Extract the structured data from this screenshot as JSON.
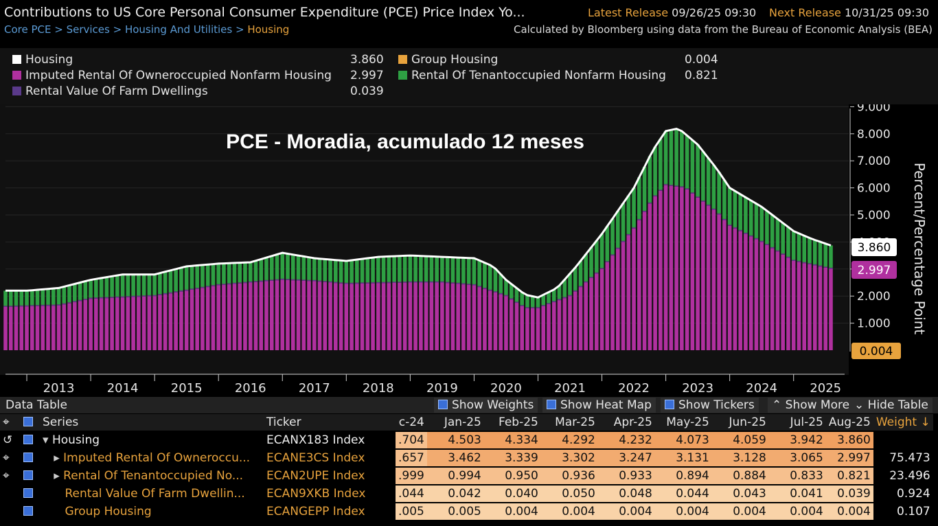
{
  "header": {
    "title": "Contributions to US Core Personal Consumer Expenditure (PCE) Price Index Yo...",
    "latest_label": "Latest Release",
    "latest_value": "09/26/25 09:30",
    "next_label": "Next Release",
    "next_value": "10/31/25 09:30",
    "breadcrumb": [
      "Core PCE",
      "Services",
      "Housing And Utilities",
      "Housing"
    ],
    "source": "Calculated by Bloomberg using data from the Bureau of Economic Analysis (BEA)"
  },
  "legend": {
    "items": [
      {
        "label": "Housing",
        "value": "3.860",
        "color": "#ffffff"
      },
      {
        "label": "Imputed Rental Of Owneroccupied Nonfarm Housing",
        "value": "2.997",
        "color": "#b0309f"
      },
      {
        "label": "Rental Value Of Farm Dwellings",
        "value": "0.039",
        "color": "#5a3a8a"
      },
      {
        "label": "Group Housing",
        "value": "0.004",
        "color": "#e8a33d"
      },
      {
        "label": "Rental Of Tenantoccupied Nonfarm Housing",
        "value": "0.821",
        "color": "#2ea043"
      }
    ]
  },
  "chart_data": {
    "type": "bar",
    "stacked": true,
    "annotation": "PCE - Moradia, acumulado 12 meses",
    "ylabel": "Percent/Percentage Point",
    "ylim": [
      0,
      9
    ],
    "yticks": [
      "1.000",
      "2.000",
      "3.000",
      "4.000",
      "5.000",
      "6.000",
      "7.000",
      "8.000",
      "9.000"
    ],
    "x_labels": [
      "2013",
      "2014",
      "2015",
      "2016",
      "2017",
      "2018",
      "2019",
      "2020",
      "2021",
      "2022",
      "2023",
      "2024",
      "2025"
    ],
    "x_start": "2012-09",
    "x_end": "2025-08",
    "end_labels": {
      "housing": "3.860",
      "imputed": "2.997",
      "group": "0.004"
    },
    "housing_knots": [
      [
        2012.7,
        2.2
      ],
      [
        2013.0,
        2.2
      ],
      [
        2013.5,
        2.3
      ],
      [
        2014.0,
        2.6
      ],
      [
        2014.5,
        2.8
      ],
      [
        2015.0,
        2.8
      ],
      [
        2015.5,
        3.1
      ],
      [
        2016.0,
        3.2
      ],
      [
        2016.5,
        3.25
      ],
      [
        2017.0,
        3.6
      ],
      [
        2017.5,
        3.4
      ],
      [
        2018.0,
        3.3
      ],
      [
        2018.5,
        3.45
      ],
      [
        2019.0,
        3.5
      ],
      [
        2019.5,
        3.45
      ],
      [
        2020.0,
        3.4
      ],
      [
        2020.3,
        3.1
      ],
      [
        2020.5,
        2.6
      ],
      [
        2020.8,
        2.05
      ],
      [
        2021.0,
        1.95
      ],
      [
        2021.3,
        2.3
      ],
      [
        2021.6,
        3.1
      ],
      [
        2022.0,
        4.3
      ],
      [
        2022.5,
        6.0
      ],
      [
        2022.8,
        7.4
      ],
      [
        2023.0,
        8.1
      ],
      [
        2023.2,
        8.2
      ],
      [
        2023.5,
        7.6
      ],
      [
        2023.8,
        6.7
      ],
      [
        2024.0,
        6.0
      ],
      [
        2024.5,
        5.3
      ],
      [
        2025.0,
        4.4
      ],
      [
        2025.3,
        4.1
      ],
      [
        2025.6,
        3.86
      ]
    ],
    "imputed_knots": [
      [
        2012.7,
        1.6
      ],
      [
        2013.5,
        1.65
      ],
      [
        2014.0,
        1.9
      ],
      [
        2015.0,
        2.0
      ],
      [
        2016.0,
        2.4
      ],
      [
        2017.0,
        2.6
      ],
      [
        2017.5,
        2.55
      ],
      [
        2018.0,
        2.45
      ],
      [
        2019.0,
        2.5
      ],
      [
        2019.5,
        2.5
      ],
      [
        2020.0,
        2.4
      ],
      [
        2020.5,
        2.0
      ],
      [
        2020.8,
        1.55
      ],
      [
        2021.0,
        1.55
      ],
      [
        2021.5,
        2.0
      ],
      [
        2022.0,
        3.0
      ],
      [
        2022.5,
        4.5
      ],
      [
        2022.8,
        5.6
      ],
      [
        2023.0,
        6.1
      ],
      [
        2023.3,
        6.0
      ],
      [
        2023.8,
        5.1
      ],
      [
        2024.0,
        4.6
      ],
      [
        2024.5,
        4.0
      ],
      [
        2025.0,
        3.3
      ],
      [
        2025.6,
        3.0
      ]
    ],
    "rental_farm_approx": 0.04,
    "group_housing_approx": 0.004
  },
  "data_table": {
    "title": "Data Table",
    "toggles": [
      "Show Weights",
      "Show Heat Map",
      "Show Tickers",
      "Show More",
      "Hide Table"
    ],
    "columns": [
      "Series",
      "Ticker",
      "c-24",
      "Jan-25",
      "Feb-25",
      "Mar-25",
      "Apr-25",
      "May-25",
      "Jun-25",
      "Jul-25",
      "Aug-25",
      "Weight ↓"
    ],
    "rows": [
      {
        "name": "Housing",
        "ticker": "ECANX183 Index",
        "values": [
          ".704",
          "4.503",
          "4.334",
          "4.292",
          "4.232",
          "4.073",
          "4.059",
          "3.942",
          "3.860"
        ],
        "weight": ""
      },
      {
        "name": "Imputed Rental Of Owneroccu...",
        "ticker": "ECANE3CS Index",
        "values": [
          ".657",
          "3.462",
          "3.339",
          "3.302",
          "3.247",
          "3.131",
          "3.128",
          "3.065",
          "2.997"
        ],
        "weight": "75.473"
      },
      {
        "name": "Rental Of Tenantoccupied No...",
        "ticker": "ECAN2UPE Index",
        "values": [
          ".999",
          "0.994",
          "0.950",
          "0.936",
          "0.933",
          "0.894",
          "0.884",
          "0.833",
          "0.821"
        ],
        "weight": "23.496"
      },
      {
        "name": "Rental Value Of Farm Dwellin...",
        "ticker": "ECAN9XKB Index",
        "values": [
          ".044",
          "0.042",
          "0.040",
          "0.050",
          "0.048",
          "0.044",
          "0.043",
          "0.041",
          "0.039"
        ],
        "weight": "0.924"
      },
      {
        "name": "Group Housing",
        "ticker": "ECANGEPP Index",
        "values": [
          ".005",
          "0.005",
          "0.004",
          "0.004",
          "0.004",
          "0.004",
          "0.004",
          "0.004",
          "0.004"
        ],
        "weight": "0.107"
      }
    ]
  }
}
